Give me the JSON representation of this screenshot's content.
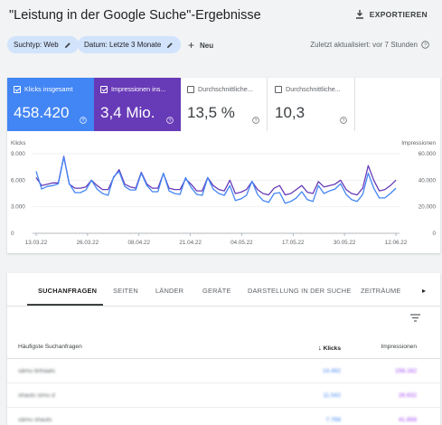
{
  "header": {
    "title": "\"Leistung in der Google Suche\"-Ergebnisse",
    "export_label": "EXPORTIEREN"
  },
  "filters": {
    "search_type": "Suchtyp: Web",
    "date": "Datum: Letzte 3 Monate",
    "new_label": "Neu",
    "updated": "Zuletzt aktualisiert: vor 7 Stunden"
  },
  "metrics": [
    {
      "label": "Klicks insgesamt",
      "value": "458.420",
      "selected": true,
      "color": "#4285f4"
    },
    {
      "label": "Impressionen ins...",
      "value": "3,4 Mio.",
      "selected": true,
      "color": "#673ab7"
    },
    {
      "label": "Durchschnittliche...",
      "value": "13,5 %",
      "selected": false
    },
    {
      "label": "Durchschnittliche...",
      "value": "10,3",
      "selected": false
    }
  ],
  "chart_data": {
    "type": "line",
    "x_ticks": [
      "13.03.22",
      "26.03.22",
      "08.04.22",
      "21.04.22",
      "04.05.22",
      "17.05.22",
      "30.05.22",
      "12.06.22"
    ],
    "left_axis": {
      "title": "Klicks",
      "ticks": [
        "9.000",
        "6.000",
        "3.000",
        "0"
      ],
      "range": [
        0,
        9000
      ]
    },
    "right_axis": {
      "title": "Impressionen",
      "ticks": [
        "60.000",
        "40.000",
        "20.000",
        "0"
      ],
      "range": [
        0,
        60000
      ]
    },
    "grid": true,
    "series": [
      {
        "name": "Klicks insgesamt",
        "axis": "left",
        "color": "#4285f4",
        "values": [
          7000,
          5000,
          5300,
          5400,
          5600,
          8600,
          5600,
          4600,
          4600,
          4900,
          6000,
          5000,
          4500,
          4300,
          6400,
          7000,
          5300,
          4900,
          4900,
          6800,
          5400,
          4700,
          4700,
          6800,
          4800,
          4500,
          4400,
          6300,
          5200,
          4400,
          4300,
          6300,
          5000,
          4500,
          4300,
          5400,
          3700,
          3900,
          4300,
          5900,
          4400,
          3700,
          3500,
          4500,
          4600,
          3400,
          3600,
          4000,
          4700,
          3800,
          3600,
          5400,
          4500,
          4800,
          5000,
          5600,
          4400,
          3800,
          3600,
          4400,
          6800,
          5100,
          4000,
          4000,
          4500,
          5100
        ]
      },
      {
        "name": "Impressionen insgesamt",
        "axis": "right",
        "color": "#673ab7",
        "values": [
          42000,
          36000,
          37000,
          38000,
          38000,
          58000,
          37000,
          34000,
          34000,
          35000,
          40000,
          36000,
          33000,
          33000,
          42000,
          48000,
          37000,
          35000,
          34000,
          46000,
          37000,
          34000,
          34000,
          45000,
          34000,
          33000,
          33000,
          41000,
          37000,
          32000,
          32000,
          42000,
          36000,
          33000,
          32000,
          40000,
          30000,
          31000,
          33000,
          39000,
          33000,
          30000,
          29000,
          34000,
          36000,
          29000,
          30000,
          33000,
          36000,
          31000,
          30000,
          39000,
          35000,
          36000,
          37000,
          40000,
          33000,
          30000,
          29000,
          34000,
          51000,
          40000,
          32000,
          33000,
          36000,
          40000
        ]
      }
    ]
  },
  "tabs": {
    "items": [
      "SUCHANFRAGEN",
      "SEITEN",
      "LÄNDER",
      "GERÄTE",
      "DARSTELLUNG IN DER SUCHE",
      "ZEITRÄUME"
    ],
    "arrow": "▸"
  },
  "table": {
    "headers": {
      "query": "Häufigste Suchanfragen",
      "clicks": "Klicks",
      "impressions": "Impressionen"
    },
    "rows": [
      {
        "query": "sämu tinhaats",
        "clicks": "14.492",
        "impressions": "156.162"
      },
      {
        "query": "shauts simu d",
        "clicks": "11.542",
        "impressions": "26.632"
      },
      {
        "query": "sämu shauts",
        "clicks": "7.768",
        "impressions": "41.658"
      }
    ]
  }
}
